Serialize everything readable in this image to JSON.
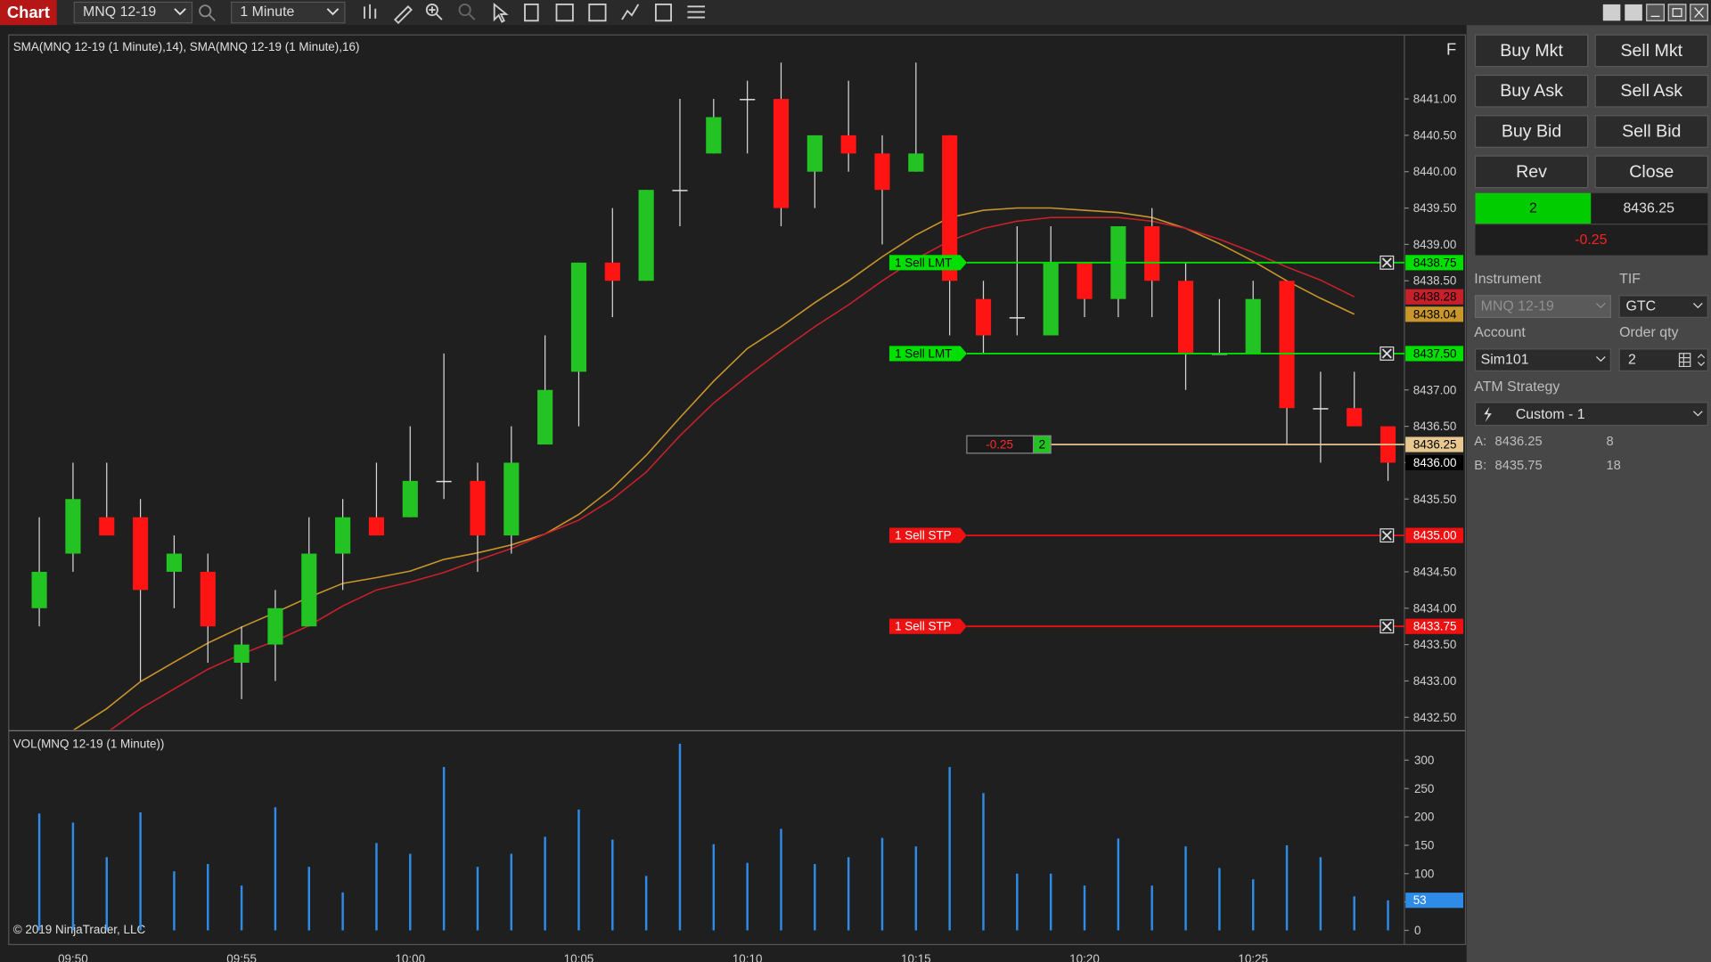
{
  "toolbar": {
    "title": "Chart",
    "instrument": "MNQ 12-19",
    "interval": "1 Minute"
  },
  "chart_data": [
    {
      "type": "candlestick",
      "title": "SMA(MNQ 12-19 (1 Minute),14), SMA(MNQ 12-19 (1 Minute),16)",
      "flag": "F",
      "categories": [
        null,
        "09:50",
        null,
        null,
        null,
        null,
        "09:55",
        null,
        null,
        null,
        null,
        "10:00",
        null,
        null,
        null,
        null,
        "10:05",
        null,
        null,
        null,
        null,
        "10:10",
        null,
        null,
        null,
        null,
        "10:15",
        null,
        null,
        null,
        null,
        "10:20",
        null,
        null,
        null,
        null,
        "10:25",
        null,
        null,
        null,
        null
      ],
      "open": [
        8434.0,
        8434.75,
        8435.25,
        8435.25,
        8434.5,
        8434.5,
        8433.25,
        8433.5,
        8433.75,
        8434.75,
        8435.25,
        8435.25,
        8435.75,
        8435.75,
        8435.0,
        8436.25,
        8437.25,
        8438.75,
        8438.5,
        8439.75,
        8440.25,
        8441.0,
        8441.0,
        8440.0,
        8440.5,
        8440.25,
        8440.0,
        8440.5,
        8438.25,
        8438.0,
        8437.75,
        8438.75,
        8438.25,
        8439.25,
        8438.5,
        8437.5,
        8437.5,
        8438.5,
        8436.75,
        8436.75,
        8436.5
      ],
      "high": [
        8435.25,
        8436.0,
        8436.0,
        8435.5,
        8435.0,
        8434.75,
        8433.75,
        8434.25,
        8435.25,
        8435.5,
        8436.0,
        8436.5,
        8437.5,
        8436.0,
        8436.5,
        8437.75,
        8438.75,
        8439.5,
        8439.75,
        8441.0,
        8441.0,
        8441.25,
        8441.5,
        8440.5,
        8441.25,
        8440.5,
        8441.5,
        8440.5,
        8438.5,
        8439.25,
        8439.25,
        8438.75,
        8439.25,
        8439.5,
        8438.75,
        8438.25,
        8438.5,
        8438.5,
        8437.25,
        8437.25,
        8436.5
      ],
      "low": [
        8433.75,
        8434.5,
        8435.0,
        8433.0,
        8434.0,
        8433.25,
        8432.75,
        8433.0,
        8433.75,
        8434.25,
        8435.0,
        8435.25,
        8435.5,
        8434.5,
        8434.75,
        8436.25,
        8436.5,
        8438.0,
        8438.5,
        8439.25,
        8440.25,
        8440.25,
        8439.25,
        8439.5,
        8440.0,
        8439.0,
        8440.0,
        8437.75,
        8437.5,
        8437.75,
        8437.75,
        8438.0,
        8438.0,
        8438.0,
        8437.0,
        8437.5,
        8437.5,
        8436.25,
        8436.0,
        8436.5,
        8435.75
      ],
      "close": [
        8434.5,
        8435.5,
        8435.0,
        8434.25,
        8434.75,
        8433.75,
        8433.5,
        8434.0,
        8434.75,
        8435.25,
        8435.0,
        8435.75,
        8435.75,
        8435.0,
        8436.0,
        8437.0,
        8438.75,
        8438.5,
        8439.75,
        8439.75,
        8440.75,
        8441.0,
        8439.5,
        8440.5,
        8440.25,
        8439.75,
        8440.25,
        8438.5,
        8437.75,
        8438.0,
        8438.75,
        8438.25,
        8439.25,
        8438.5,
        8437.5,
        8437.5,
        8438.25,
        8436.75,
        8436.75,
        8436.5,
        8436.0
      ],
      "up_color": "#22c322",
      "down_color": "#ff1414",
      "doji_color": "#e0e0e0",
      "series": [
        {
          "color": "#c8962a",
          "values": [
            null,
            8432.32,
            8432.62,
            8432.99,
            8433.26,
            8433.52,
            8433.74,
            8433.94,
            8434.15,
            8434.34,
            8434.42,
            8434.51,
            8434.67,
            8434.76,
            8434.87,
            8435.02,
            8435.29,
            8435.65,
            8436.1,
            8436.62,
            8437.12,
            8437.57,
            8437.87,
            8438.2,
            8438.5,
            8438.83,
            8439.13,
            8439.37,
            8439.47,
            8439.5,
            8439.5,
            8439.47,
            8439.44,
            8439.37,
            8439.22,
            8439.01,
            8438.77,
            8438.5,
            8438.26,
            8438.04,
            null
          ]
        },
        {
          "color": "#c8202a",
          "values": [
            null,
            null,
            8432.29,
            8432.62,
            8432.89,
            8433.16,
            8433.37,
            8433.55,
            8433.76,
            8434.03,
            8434.25,
            8434.36,
            8434.49,
            8434.66,
            8434.82,
            8435.02,
            8435.21,
            8435.5,
            8435.87,
            8436.37,
            8436.82,
            8437.19,
            8437.54,
            8437.87,
            8438.17,
            8438.5,
            8438.8,
            8439.05,
            8439.22,
            8439.32,
            8439.37,
            8439.37,
            8439.37,
            8439.32,
            8439.22,
            8439.07,
            8438.89,
            8438.69,
            8438.51,
            8438.28,
            null
          ]
        }
      ],
      "ylim": [
        8432.33,
        8441.88
      ],
      "yticks": [
        {
          "value": 8441,
          "label": "8441.00"
        },
        {
          "value": 8440.5,
          "label": "8440.50"
        },
        {
          "value": 8440,
          "label": "8440.00"
        },
        {
          "value": 8439.5,
          "label": "8439.50"
        },
        {
          "value": 8439,
          "label": "8439.00"
        },
        {
          "value": 8438.5,
          "label": "8438.50"
        },
        {
          "value": 8437,
          "label": "8437.00"
        },
        {
          "value": 8436.5,
          "label": "8436.50"
        },
        {
          "value": 8435.5,
          "label": "8435.50"
        },
        {
          "value": 8434.5,
          "label": "8434.50"
        },
        {
          "value": 8434,
          "label": "8434.00"
        },
        {
          "value": 8433.5,
          "label": "8433.50"
        },
        {
          "value": 8433,
          "label": "8433.00"
        },
        {
          "value": 8432.5,
          "label": "8432.50"
        }
      ],
      "grid": false,
      "orders": [
        {
          "text": "1 Sell LMT",
          "price": 8438.75,
          "color": "#00e000",
          "label_color": "#000000"
        },
        {
          "text": "1 Sell LMT",
          "price": {
            "value": 8437.5,
            "label": "8437.50"
          },
          "color": "#00e000",
          "label_color": "#000000"
        },
        {
          "text": "1 Sell STP",
          "price": {
            "value": 8435,
            "label": "8435.00"
          },
          "color": "#ee1111",
          "label_color": "#ffffff"
        },
        {
          "text": "1 Sell STP",
          "price": 8433.75,
          "color": "#ee1111",
          "label_color": "#ffffff"
        }
      ],
      "position": {
        "pnl": -0.25,
        "quantity": 2,
        "price": 8436.25,
        "color": "#e8c890"
      },
      "last_price": {
        "value": 8436,
        "label": "8436.00"
      }
    },
    {
      "type": "bar",
      "title": "VOL(MNQ 12-19 (1 Minute))",
      "annotation": "© 2019 NinjaTrader, LLC",
      "values": [
        206,
        190,
        129,
        208,
        104,
        117,
        79,
        217,
        112,
        67,
        154,
        135,
        288,
        112,
        135,
        165,
        213,
        160,
        96,
        329,
        152,
        119,
        179,
        117,
        129,
        163,
        148,
        288,
        242,
        100,
        100,
        79,
        162,
        79,
        148,
        110,
        90,
        150,
        129,
        60,
        53
      ],
      "color": "#2e8be6",
      "ylim": [
        -25,
        348
      ],
      "yticks": [
        0,
        50,
        100,
        150,
        200,
        250,
        300
      ],
      "grid": false
    }
  ],
  "order_panel": {
    "buttons": [
      [
        "Buy Mkt",
        "Sell Mkt"
      ],
      [
        "Buy Ask",
        "Sell Ask"
      ],
      [
        "Buy Bid",
        "Sell Bid"
      ],
      [
        "Rev",
        "Close"
      ]
    ],
    "position": {
      "quantity": 2,
      "price": 8436.25,
      "pnl": -0.25
    },
    "instrument": {
      "label": "Instrument",
      "value": "MNQ 12-19"
    },
    "tif": {
      "label": "TIF",
      "value": "GTC"
    },
    "account": {
      "label": "Account",
      "value": "Sim101"
    },
    "order_qty": {
      "label": "Order qty",
      "value": 2
    },
    "atm_strategy": {
      "label": "ATM Strategy",
      "value": "Custom - 1"
    },
    "quotes": [
      {
        "side": "A:",
        "price": 8436.25,
        "size": 8
      },
      {
        "side": "B:",
        "price": 8435.75,
        "size": 18
      }
    ]
  }
}
